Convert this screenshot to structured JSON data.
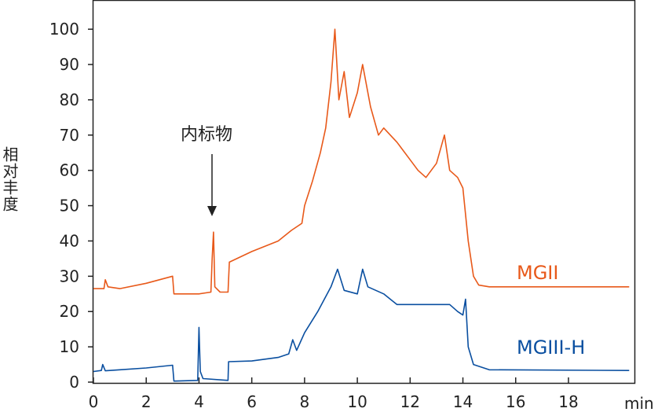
{
  "chart_data": {
    "type": "line",
    "title": "",
    "xlabel": "min",
    "ylabel": "相对丰度",
    "xlim": [
      0,
      20.5
    ],
    "ylim": [
      0,
      108.5
    ],
    "xticks": [
      0,
      2,
      4,
      6,
      8,
      10,
      12,
      14,
      16,
      18
    ],
    "yticks": [
      0,
      10,
      20,
      30,
      40,
      50,
      60,
      70,
      80,
      90,
      100
    ],
    "grid": false,
    "annotation": {
      "text": "内标物",
      "x": 4.5,
      "y": 48
    },
    "series": [
      {
        "name": "MGII",
        "color": "#e8591a",
        "x": [
          0,
          0.4,
          0.45,
          0.55,
          1,
          2,
          3,
          3.05,
          4,
          4.45,
          4.5,
          4.55,
          4.6,
          4.8,
          5.1,
          5.15,
          6,
          7,
          7.5,
          7.9,
          8,
          8.3,
          8.6,
          8.8,
          9.0,
          9.15,
          9.3,
          9.5,
          9.7,
          10,
          10.2,
          10.5,
          10.8,
          11,
          11.5,
          12,
          12.3,
          12.6,
          13,
          13.3,
          13.5,
          13.8,
          14,
          14.2,
          14.4,
          14.6,
          15,
          20.3
        ],
        "y": [
          26.5,
          26.5,
          29,
          27,
          26.5,
          28,
          30,
          25,
          25,
          25.5,
          35,
          42.5,
          27,
          25.5,
          25.5,
          34,
          37,
          40,
          43,
          45,
          50,
          57,
          65,
          72,
          85,
          100,
          80,
          88,
          75,
          82,
          90,
          78,
          70,
          72,
          68,
          63,
          60,
          58,
          62,
          70,
          60,
          58,
          55,
          40,
          30,
          27.5,
          27,
          27
        ]
      },
      {
        "name": "MGIII-H",
        "color": "#0a4fa0",
        "x": [
          0,
          0.3,
          0.35,
          0.45,
          1,
          2,
          3,
          3.05,
          3.95,
          4.0,
          4.05,
          4.15,
          5.1,
          5.12,
          6,
          7,
          7.4,
          7.55,
          7.7,
          8,
          8.5,
          9,
          9.25,
          9.5,
          10,
          10.2,
          10.4,
          11,
          11.5,
          12,
          13,
          13.5,
          13.8,
          14.0,
          14.1,
          14.2,
          14.4,
          15,
          20.3
        ],
        "y": [
          3,
          3.3,
          5,
          3.2,
          3.5,
          4,
          4.8,
          0.3,
          0.5,
          15.5,
          3,
          1,
          0.5,
          5.8,
          6,
          7,
          8,
          12,
          9,
          14,
          20,
          27,
          32,
          26,
          25,
          32,
          27,
          25,
          22,
          22,
          22,
          22,
          20,
          19,
          23.5,
          10,
          5,
          3.5,
          3.3
        ]
      }
    ]
  }
}
